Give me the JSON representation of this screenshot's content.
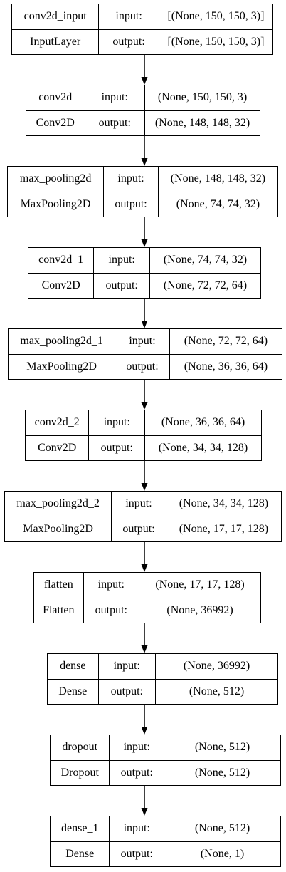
{
  "layers": [
    {
      "name": "conv2d_input",
      "type": "InputLayer",
      "input_label": "input:",
      "output_label": "output:",
      "input_shape": "[(None, 150, 150, 3)]",
      "output_shape": "[(None, 150, 150, 3)]"
    },
    {
      "name": "conv2d",
      "type": "Conv2D",
      "input_label": "input:",
      "output_label": "output:",
      "input_shape": "(None, 150, 150, 3)",
      "output_shape": "(None, 148, 148, 32)"
    },
    {
      "name": "max_pooling2d",
      "type": "MaxPooling2D",
      "input_label": "input:",
      "output_label": "output:",
      "input_shape": "(None, 148, 148, 32)",
      "output_shape": "(None, 74, 74, 32)"
    },
    {
      "name": "conv2d_1",
      "type": "Conv2D",
      "input_label": "input:",
      "output_label": "output:",
      "input_shape": "(None, 74, 74, 32)",
      "output_shape": "(None, 72, 72, 64)"
    },
    {
      "name": "max_pooling2d_1",
      "type": "MaxPooling2D",
      "input_label": "input:",
      "output_label": "output:",
      "input_shape": "(None, 72, 72, 64)",
      "output_shape": "(None, 36, 36, 64)"
    },
    {
      "name": "conv2d_2",
      "type": "Conv2D",
      "input_label": "input:",
      "output_label": "output:",
      "input_shape": "(None, 36, 36, 64)",
      "output_shape": "(None, 34, 34, 128)"
    },
    {
      "name": "max_pooling2d_2",
      "type": "MaxPooling2D",
      "input_label": "input:",
      "output_label": "output:",
      "input_shape": "(None, 34, 34, 128)",
      "output_shape": "(None, 17, 17, 128)"
    },
    {
      "name": "flatten",
      "type": "Flatten",
      "input_label": "input:",
      "output_label": "output:",
      "input_shape": "(None, 17, 17, 128)",
      "output_shape": "(None, 36992)"
    },
    {
      "name": "dense",
      "type": "Dense",
      "input_label": "input:",
      "output_label": "output:",
      "input_shape": "(None, 36992)",
      "output_shape": "(None, 512)"
    },
    {
      "name": "dropout",
      "type": "Dropout",
      "input_label": "input:",
      "output_label": "output:",
      "input_shape": "(None, 512)",
      "output_shape": "(None, 512)"
    },
    {
      "name": "dense_1",
      "type": "Dense",
      "input_label": "input:",
      "output_label": "output:",
      "input_shape": "(None, 512)",
      "output_shape": "(None, 1)"
    }
  ]
}
